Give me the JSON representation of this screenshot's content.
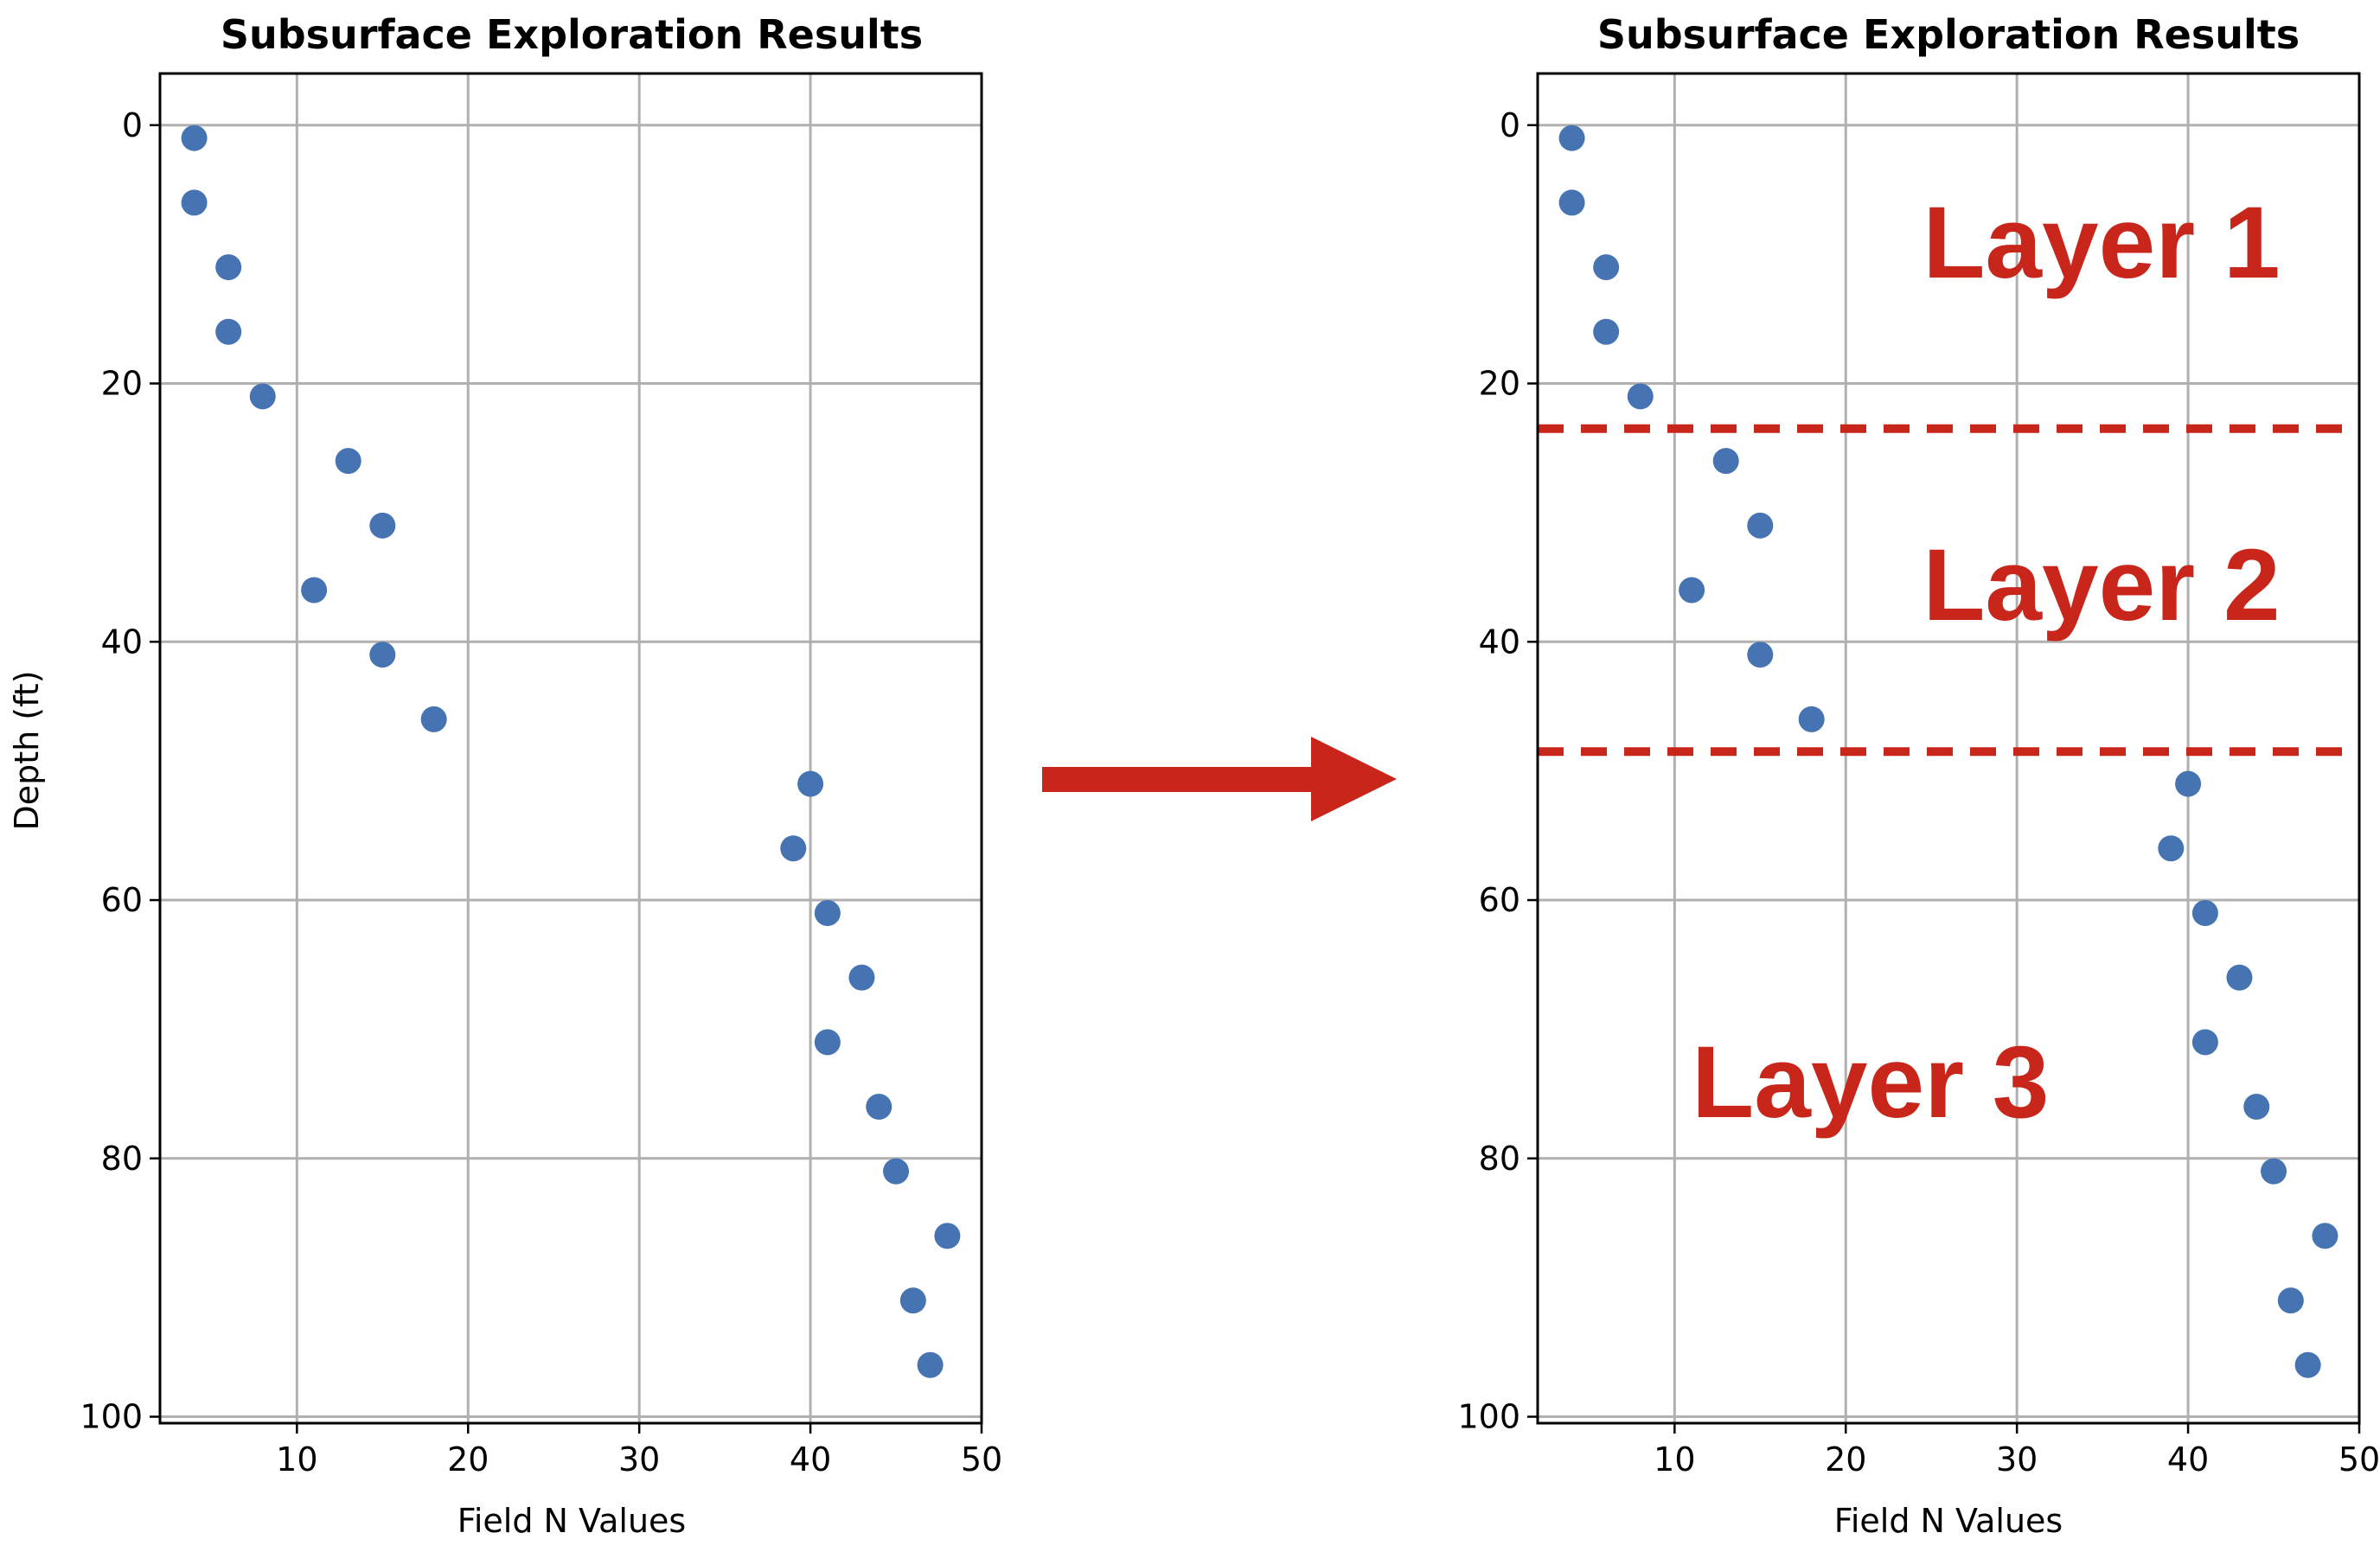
{
  "colors": {
    "point": "#4673b1",
    "grid": "#b0b0b0",
    "frame": "#000000",
    "accent_red": "#c9261b"
  },
  "chart_data": [
    {
      "type": "scatter",
      "title": "Subsurface Exploration Results",
      "xlabel": "Field N Values",
      "ylabel": "Depth (ft)",
      "xlim": [
        2,
        50
      ],
      "ylim": [
        100.5,
        -4
      ],
      "y_inverted": true,
      "grid": true,
      "xticks": [
        10,
        20,
        30,
        40,
        50
      ],
      "yticks": [
        0,
        20,
        40,
        60,
        80,
        100
      ],
      "series": [
        {
          "name": "Field N",
          "x": [
            4,
            4,
            6,
            6,
            8,
            13,
            15,
            11,
            15,
            18,
            40,
            39,
            41,
            43,
            41,
            44,
            45,
            48,
            46,
            47
          ],
          "y": [
            1,
            6,
            11,
            16,
            21,
            26,
            31,
            36,
            41,
            46,
            51,
            56,
            61,
            66,
            71,
            76,
            81,
            86,
            91,
            96
          ]
        }
      ]
    },
    {
      "type": "scatter",
      "title": "Subsurface Exploration Results",
      "xlabel": "Field N Values",
      "ylabel": "",
      "xlim": [
        2,
        50
      ],
      "ylim": [
        100.5,
        -4
      ],
      "y_inverted": true,
      "grid": true,
      "xticks": [
        10,
        20,
        30,
        40,
        50
      ],
      "yticks": [
        0,
        20,
        40,
        60,
        80,
        100
      ],
      "series": [
        {
          "name": "Field N",
          "x": [
            4,
            4,
            6,
            6,
            8,
            13,
            15,
            11,
            15,
            18,
            40,
            39,
            41,
            43,
            41,
            44,
            45,
            48,
            46,
            47
          ],
          "y": [
            1,
            6,
            11,
            16,
            21,
            26,
            31,
            36,
            41,
            46,
            51,
            56,
            61,
            66,
            71,
            76,
            81,
            86,
            91,
            96
          ]
        }
      ],
      "boundaries": [
        {
          "name": "layer-1-2-boundary",
          "depth": 23.5,
          "style": "dashed"
        },
        {
          "name": "layer-2-3-boundary",
          "depth": 48.5,
          "style": "dashed"
        }
      ],
      "annotations": [
        {
          "text": "Layer 1",
          "x": 24.5,
          "y": 9
        },
        {
          "text": "Layer 2",
          "x": 24.5,
          "y": 35.5
        },
        {
          "text": "Layer 3",
          "x": 11,
          "y": 74
        }
      ]
    }
  ],
  "arrow": {
    "direction": "right"
  }
}
